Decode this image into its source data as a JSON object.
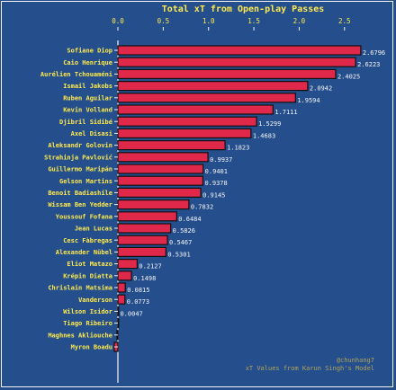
{
  "chart_data": {
    "type": "bar",
    "orientation": "horizontal",
    "title": "Total xT from Open-play Passes",
    "xlabel": "",
    "ylabel": "",
    "xlim": [
      0,
      2.8
    ],
    "x_ticks": [
      "0.0",
      "0.5",
      "1.0",
      "1.5",
      "2.0",
      "2.5"
    ],
    "x_axis_position": "top",
    "grid": false,
    "categories": [
      "Sofiane Diop",
      "Caio Henrique",
      "Aurélien Tchouaméni",
      "Ismail Jakobs",
      "Ruben Aguilar",
      "Kevin Volland",
      "Djibril Sidibé",
      "Axel Disasi",
      "Aleksandr Golovin",
      "Strahinja Pavlović",
      "Guillermo Maripán",
      "Gelson Martins",
      "Benoit Badiashile",
      "Wissam Ben Yedder",
      "Youssouf Fofana",
      "Jean Lucas",
      "Cesc Fàbregas",
      "Alexander Nübel",
      "Eliot Matazo",
      "Krépin Diatta",
      "Chrislain Matsima",
      "Vanderson",
      "Wilson Isidor",
      "Tiago Ribeiro",
      "Maghnes Akliouche",
      "Myron Boadu"
    ],
    "values": [
      2.6796,
      2.6223,
      2.4025,
      2.0942,
      1.9594,
      1.7111,
      1.5299,
      1.4683,
      1.1823,
      0.9937,
      0.9401,
      0.9378,
      0.9145,
      0.7832,
      0.6484,
      0.5826,
      0.5467,
      0.5301,
      0.2127,
      0.1498,
      0.0815,
      0.0773,
      0.0047,
      0.0,
      -0.01,
      -0.04
    ],
    "value_labels": [
      "2.6796",
      "2.6223",
      "2.4025",
      "2.0942",
      "1.9594",
      "1.7111",
      "1.5299",
      "1.4683",
      "1.1823",
      "0.9937",
      "0.9401",
      "0.9378",
      "0.9145",
      "0.7832",
      "0.6484",
      "0.5826",
      "0.5467",
      "0.5301",
      "0.2127",
      "0.1498",
      "0.0815",
      "0.0773",
      "0.0047",
      "",
      "",
      ""
    ],
    "colors": {
      "background": "#244f8c",
      "bar": "#e0284a",
      "bar_edge": "#111111",
      "text": "#ffe94d",
      "value_text": "#f4f4f4",
      "axis": "#f4f4f4",
      "credit": "#b3a35a"
    }
  },
  "credits": {
    "author": "@chunhang7",
    "source": "xT Values from Karun Singh's Model"
  }
}
